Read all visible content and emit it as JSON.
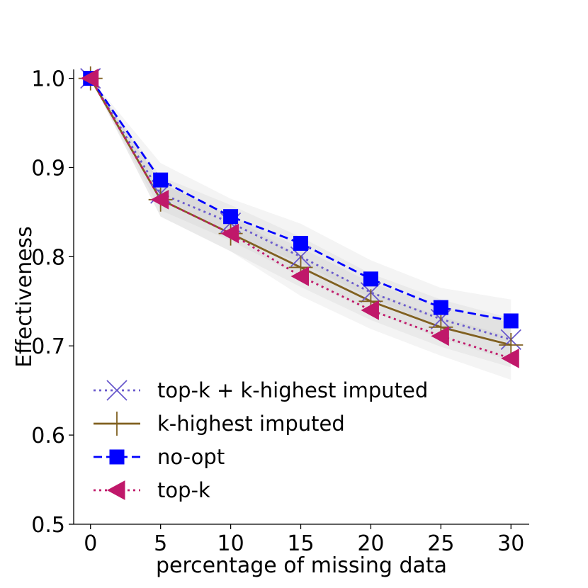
{
  "chart_data": {
    "type": "line",
    "title": "",
    "xlabel": "percentage of missing data",
    "ylabel": "Effectiveness",
    "xlim": [
      -1.2,
      31.3
    ],
    "ylim": [
      0.5,
      1.01
    ],
    "x": [
      0,
      5,
      10,
      15,
      20,
      25,
      30
    ],
    "xticks": [
      0,
      5,
      10,
      15,
      20,
      25,
      30
    ],
    "yticks": [
      0.5,
      0.6,
      0.7,
      0.8,
      0.9,
      1.0
    ],
    "ytick_labels": [
      "0.5",
      "0.6",
      "0.7",
      "0.8",
      "0.9",
      "1.0"
    ],
    "legend_position": "lower-left",
    "series": [
      {
        "name": "top-k + k-highest imputed",
        "values": [
          1.0,
          0.871,
          0.838,
          0.8,
          0.76,
          0.73,
          0.707
        ],
        "band_low": [
          1.0,
          0.852,
          0.818,
          0.778,
          0.739,
          0.708,
          0.683
        ],
        "band_high": [
          1.0,
          0.89,
          0.858,
          0.822,
          0.781,
          0.752,
          0.731
        ],
        "color": "#6a5acd",
        "dash": "dotted",
        "marker": "x"
      },
      {
        "name": "k-highest imputed",
        "values": [
          1.0,
          0.864,
          0.826,
          0.788,
          0.75,
          0.721,
          0.701
        ],
        "band_low": [
          1.0,
          0.845,
          0.806,
          0.766,
          0.729,
          0.699,
          0.676
        ],
        "band_high": [
          1.0,
          0.883,
          0.846,
          0.81,
          0.771,
          0.743,
          0.726
        ],
        "color": "#806020",
        "dash": "solid",
        "marker": "plus"
      },
      {
        "name": "no-opt",
        "values": [
          1.0,
          0.886,
          0.845,
          0.815,
          0.775,
          0.743,
          0.728
        ],
        "band_low": [
          1.0,
          0.867,
          0.825,
          0.793,
          0.754,
          0.721,
          0.704
        ],
        "band_high": [
          1.0,
          0.905,
          0.865,
          0.837,
          0.796,
          0.765,
          0.752
        ],
        "color": "#0000ff",
        "dash": "dashed",
        "marker": "square"
      },
      {
        "name": "top-k",
        "values": [
          1.0,
          0.864,
          0.826,
          0.778,
          0.74,
          0.711,
          0.686
        ],
        "band_low": [
          1.0,
          0.845,
          0.806,
          0.756,
          0.719,
          0.689,
          0.662
        ],
        "band_high": [
          1.0,
          0.883,
          0.846,
          0.8,
          0.761,
          0.733,
          0.71
        ],
        "color": "#c0186a",
        "dash": "dotted",
        "marker": "triangle-left"
      }
    ]
  }
}
